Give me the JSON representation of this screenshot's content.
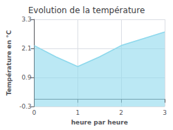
{
  "chart_data": {
    "type": "area",
    "title": "Evolution de la température",
    "xlabel": "heure par heure",
    "ylabel": "Température en °C",
    "x": [
      0,
      0.5,
      1.0,
      1.5,
      2.0,
      2.5,
      3.0
    ],
    "values": [
      2.22,
      1.75,
      1.35,
      1.75,
      2.22,
      2.5,
      2.78
    ],
    "color": "#8dd8ec",
    "xlim": [
      0,
      3
    ],
    "xticks": [
      0,
      1,
      2,
      3
    ],
    "ylim": [
      -0.3,
      3.3
    ],
    "yticks": [
      -0.3,
      0.9,
      2.1,
      3.3
    ],
    "grid": true
  }
}
